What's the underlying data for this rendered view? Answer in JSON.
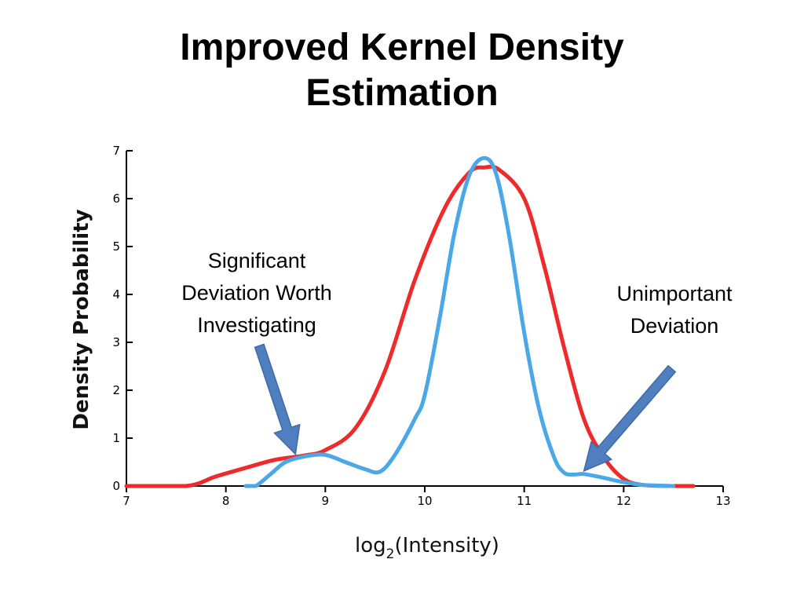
{
  "slide": {
    "title_line1": "Improved Kernel Density",
    "title_line2": "Estimation"
  },
  "chart_data": {
    "type": "line",
    "ylabel": "Density Probability",
    "xlabel_base": "log",
    "xlabel_sub": "2",
    "xlabel_rest": "(Intensity)",
    "xlim": [
      7,
      13
    ],
    "ylim": [
      0,
      7
    ],
    "x_ticks": [
      7,
      8,
      9,
      10,
      11,
      12,
      13
    ],
    "y_ticks": [
      0,
      1,
      2,
      3,
      4,
      5,
      6,
      7
    ],
    "grid": false,
    "series": [
      {
        "color": "#ee2a2a",
        "points": [
          [
            7.0,
            0.0
          ],
          [
            7.6,
            0.0
          ],
          [
            7.9,
            0.2
          ],
          [
            8.2,
            0.38
          ],
          [
            8.5,
            0.55
          ],
          [
            8.8,
            0.64
          ],
          [
            9.0,
            0.75
          ],
          [
            9.3,
            1.2
          ],
          [
            9.6,
            2.4
          ],
          [
            9.9,
            4.3
          ],
          [
            10.2,
            5.8
          ],
          [
            10.45,
            6.55
          ],
          [
            10.6,
            6.65
          ],
          [
            10.75,
            6.6
          ],
          [
            11.0,
            6.0
          ],
          [
            11.2,
            4.6
          ],
          [
            11.4,
            2.9
          ],
          [
            11.6,
            1.4
          ],
          [
            11.8,
            0.6
          ],
          [
            12.0,
            0.15
          ],
          [
            12.2,
            0.02
          ],
          [
            12.5,
            0.0
          ],
          [
            12.7,
            0.0
          ]
        ]
      },
      {
        "color": "#4aa8e8",
        "points": [
          [
            8.2,
            0.0
          ],
          [
            8.3,
            0.0
          ],
          [
            8.45,
            0.25
          ],
          [
            8.6,
            0.5
          ],
          [
            8.8,
            0.62
          ],
          [
            9.0,
            0.65
          ],
          [
            9.2,
            0.5
          ],
          [
            9.4,
            0.35
          ],
          [
            9.55,
            0.3
          ],
          [
            9.7,
            0.65
          ],
          [
            9.9,
            1.4
          ],
          [
            10.0,
            1.9
          ],
          [
            10.15,
            3.5
          ],
          [
            10.3,
            5.3
          ],
          [
            10.45,
            6.5
          ],
          [
            10.6,
            6.85
          ],
          [
            10.72,
            6.5
          ],
          [
            10.85,
            5.2
          ],
          [
            11.0,
            3.2
          ],
          [
            11.15,
            1.6
          ],
          [
            11.3,
            0.6
          ],
          [
            11.4,
            0.28
          ],
          [
            11.5,
            0.24
          ],
          [
            11.6,
            0.25
          ],
          [
            11.8,
            0.17
          ],
          [
            12.0,
            0.08
          ],
          [
            12.2,
            0.02
          ],
          [
            12.5,
            0.0
          ]
        ]
      }
    ],
    "annotations": [
      {
        "lines": [
          "Significant",
          "Deviation Worth",
          "Investigating"
        ],
        "points_to": [
          8.7,
          0.6
        ]
      },
      {
        "lines": [
          "Unimportant",
          "Deviation"
        ],
        "points_to": [
          11.6,
          0.25
        ]
      }
    ]
  },
  "colors": {
    "arrow": "#4f7fbf"
  }
}
